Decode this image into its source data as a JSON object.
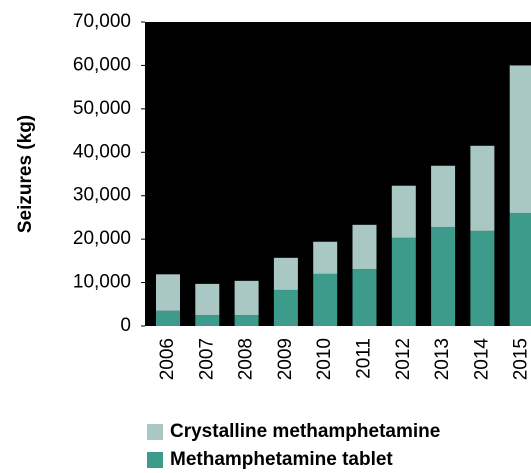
{
  "chart_data": {
    "type": "stacked_bar",
    "y_label": "Seizures (kg)",
    "categories": [
      "2006",
      "2007",
      "2008",
      "2009",
      "2010",
      "2011",
      "2012",
      "2013",
      "2014",
      "2015"
    ],
    "series": [
      {
        "name": "Methamphetamine tablet",
        "color": "#3d9b8b",
        "values": [
          3500,
          2500,
          2500,
          8300,
          12000,
          13100,
          20300,
          22800,
          21900,
          26000
        ]
      },
      {
        "name": "Crystalline methamphetamine",
        "color": "#a9c7c3",
        "values": [
          8400,
          7200,
          7900,
          7400,
          7400,
          10200,
          12000,
          14100,
          19600,
          34000
        ]
      }
    ],
    "ylim": [
      0,
      70000
    ],
    "yticks": [
      0,
      {
        "value": 10000,
        "label": "10,000"
      },
      {
        "value": 20000,
        "label": "20,000"
      },
      {
        "value": 30000,
        "label": "30,000"
      },
      {
        "value": 40000,
        "label": "40,000"
      },
      {
        "value": 50000,
        "label": "50,000"
      },
      {
        "value": 60000,
        "label": "60,000"
      },
      {
        "value": 70000,
        "label": "70,000"
      }
    ],
    "plot_background": "#000000"
  }
}
